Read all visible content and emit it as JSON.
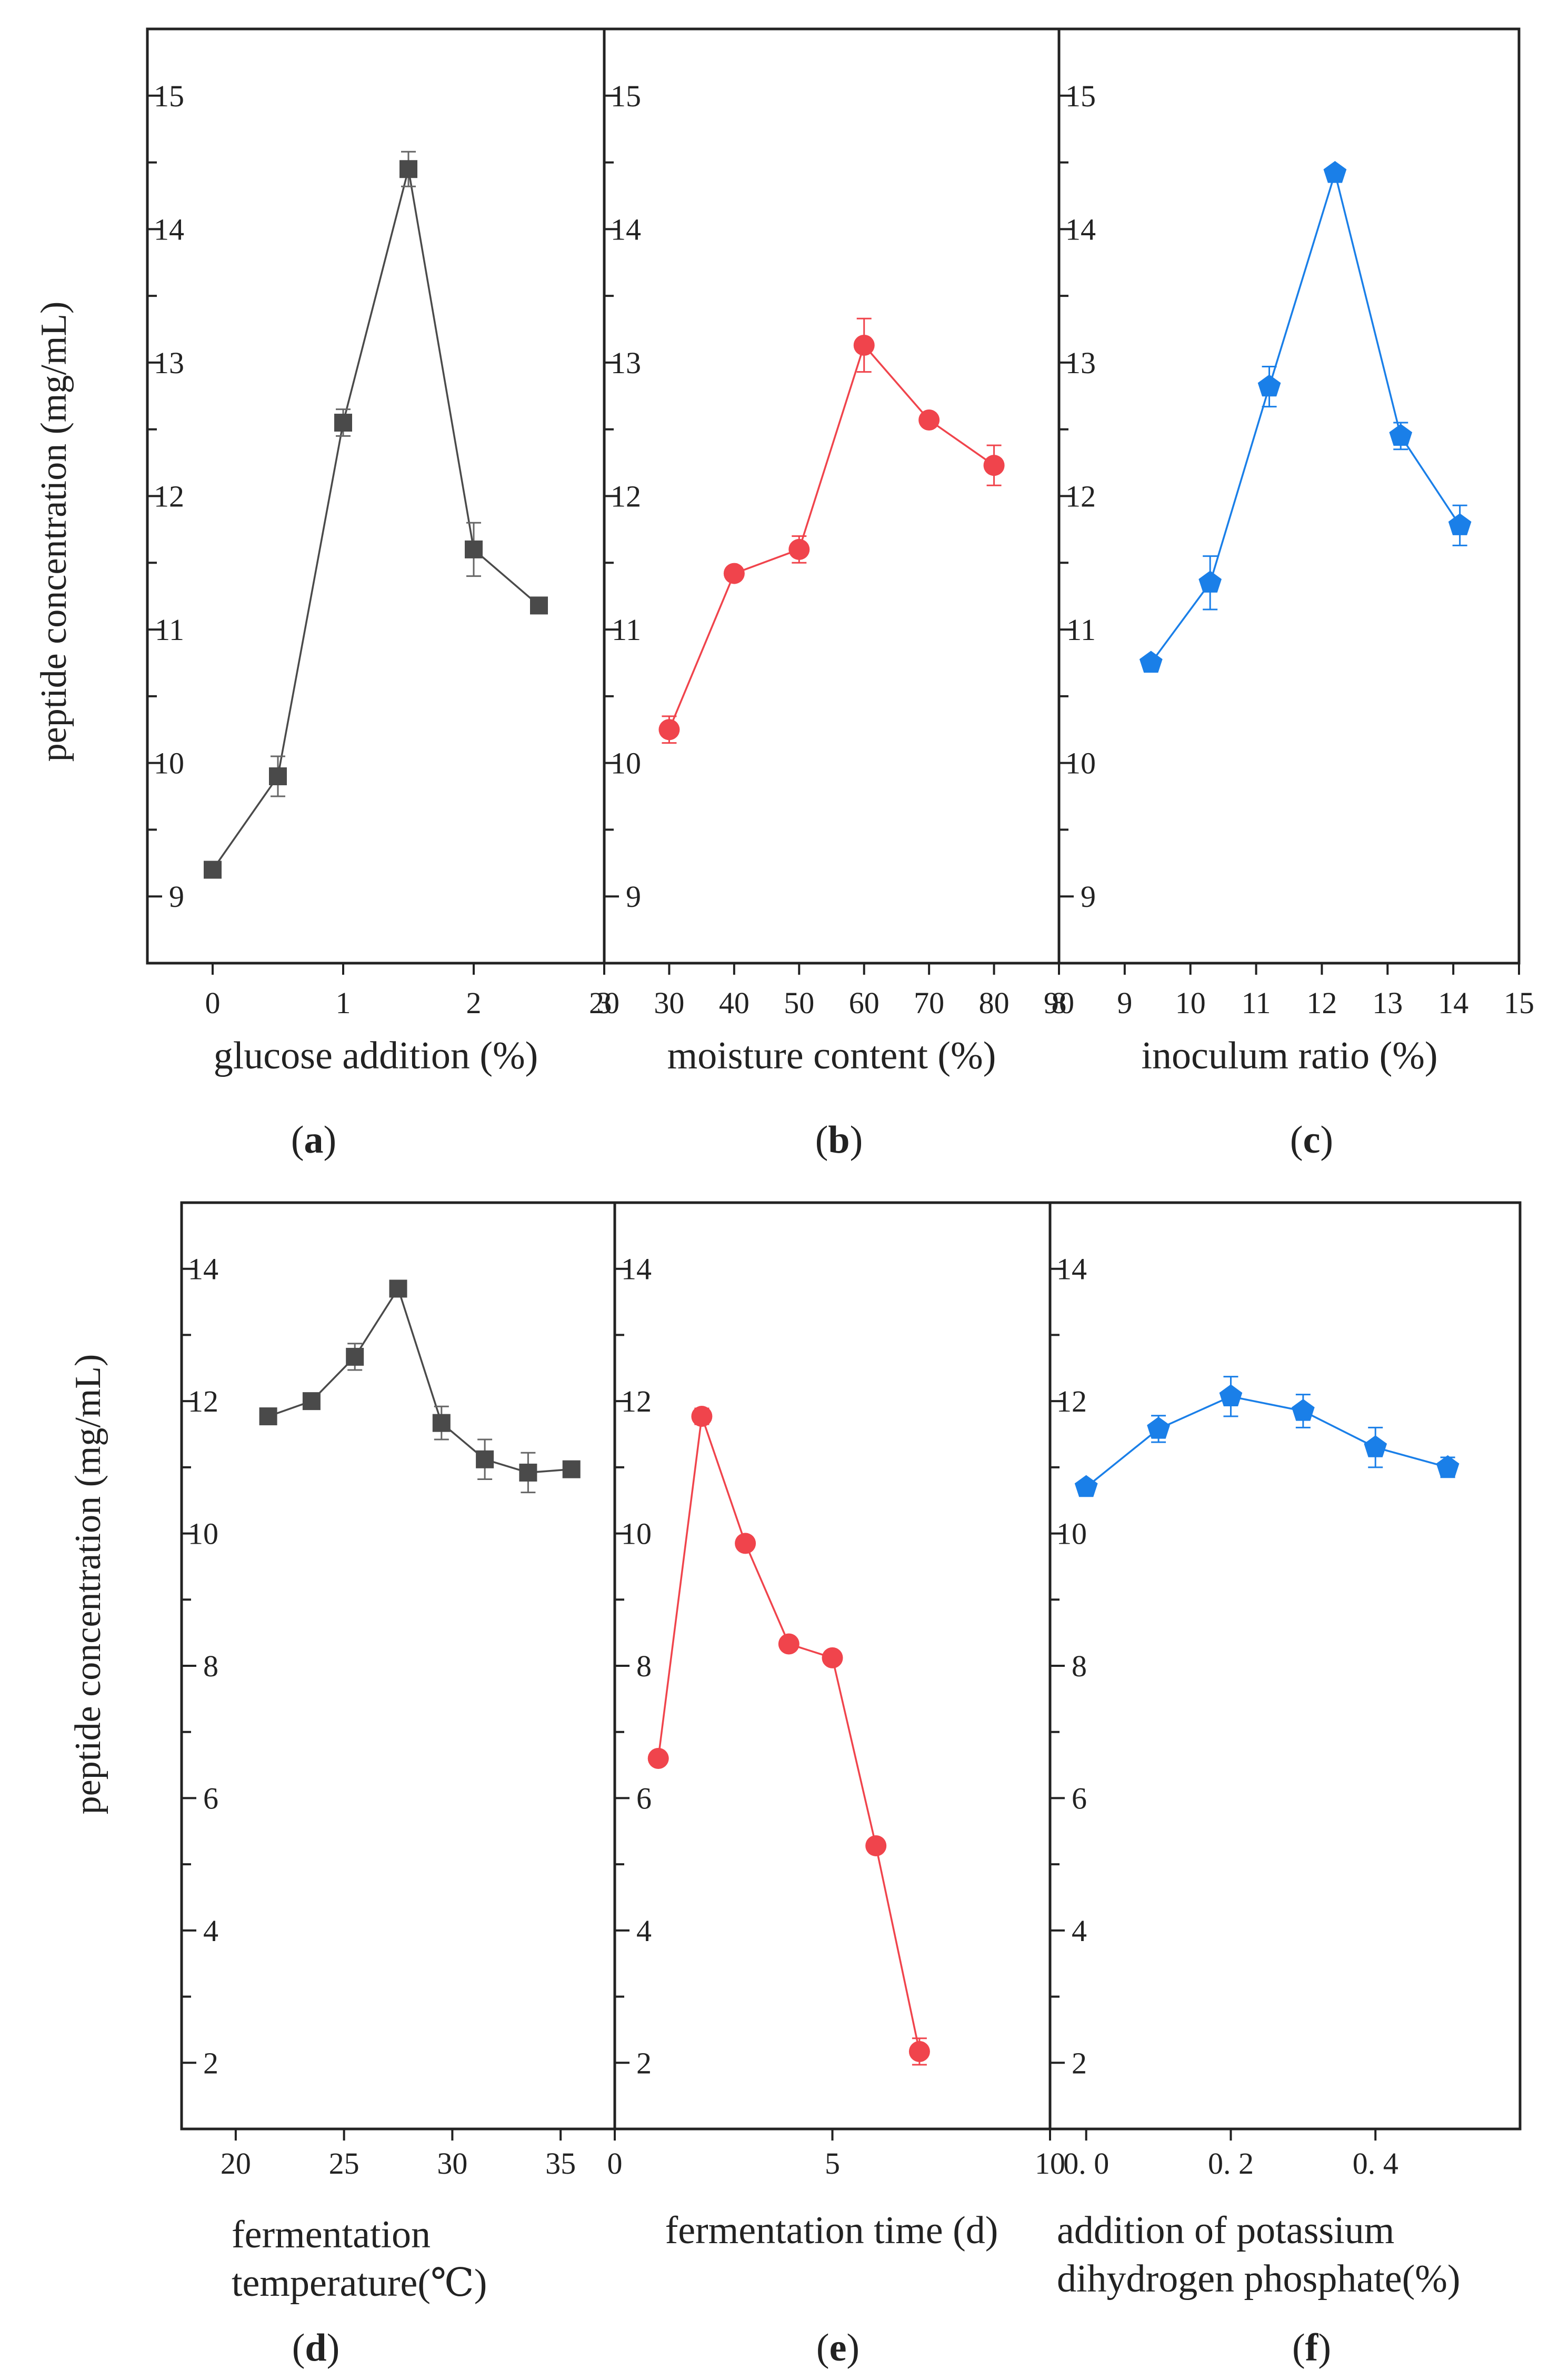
{
  "chart_data": [
    {
      "id": "a",
      "type": "line",
      "caption_letter": "a",
      "ylabel": "peptide concentration (mg/mL)",
      "xlabel_lines": [
        "glucose addition (%)"
      ],
      "xlim": [
        -0.5,
        3
      ],
      "ylim": [
        8.5,
        15.5
      ],
      "xticks": [
        0,
        1,
        2,
        3
      ],
      "yticks": [
        9,
        10,
        11,
        12,
        13,
        14,
        15
      ],
      "x_tick_labels": [
        "0",
        "1",
        "2",
        "3"
      ],
      "y_tick_labels": [
        "9",
        "10",
        "11",
        "12",
        "13",
        "14",
        "15"
      ],
      "color": "#4a4a4a",
      "marker": "square",
      "series": [
        {
          "name": "glucose addition",
          "x": [
            0,
            0.5,
            1.0,
            1.5,
            2.0,
            2.5
          ],
          "y": [
            9.2,
            9.9,
            12.55,
            14.45,
            11.6,
            11.18
          ],
          "err": [
            0.03,
            0.15,
            0.1,
            0.13,
            0.2,
            0.06
          ]
        }
      ]
    },
    {
      "id": "b",
      "type": "line",
      "caption_letter": "b",
      "ylabel": "",
      "xlabel_lines": [
        "moisture content (%)"
      ],
      "xlim": [
        20,
        90
      ],
      "ylim": [
        8.5,
        15.5
      ],
      "xticks": [
        20,
        30,
        40,
        50,
        60,
        70,
        80,
        90
      ],
      "yticks": [
        9,
        10,
        11,
        12,
        13,
        14,
        15
      ],
      "x_tick_labels": [
        "20",
        "30",
        "40",
        "50",
        "60",
        "70",
        "80",
        "90"
      ],
      "y_tick_labels": [
        "9",
        "10",
        "11",
        "12",
        "13",
        "14",
        "15"
      ],
      "color": "#f0444c",
      "marker": "circle",
      "series": [
        {
          "name": "moisture content",
          "x": [
            30,
            40,
            50,
            60,
            70,
            80
          ],
          "y": [
            10.25,
            11.42,
            11.6,
            13.13,
            12.57,
            12.23
          ],
          "err": [
            0.1,
            0.04,
            0.1,
            0.2,
            0.04,
            0.15
          ]
        }
      ]
    },
    {
      "id": "c",
      "type": "line",
      "caption_letter": "c",
      "ylabel": "",
      "xlabel_lines": [
        "inoculum ratio (%)"
      ],
      "xlim": [
        8,
        15
      ],
      "ylim": [
        8.5,
        15.5
      ],
      "xticks": [
        8,
        9,
        10,
        11,
        12,
        13,
        14,
        15
      ],
      "yticks": [
        9,
        10,
        11,
        12,
        13,
        14,
        15
      ],
      "x_tick_labels": [
        "8",
        "9",
        "10",
        "11",
        "12",
        "13",
        "14",
        "15"
      ],
      "y_tick_labels": [
        "9",
        "10",
        "11",
        "12",
        "13",
        "14",
        "15"
      ],
      "color": "#1a7fe8",
      "marker": "pentagon",
      "series": [
        {
          "name": "inoculum ratio",
          "x": [
            9.4,
            10.3,
            11.2,
            12.2,
            13.2,
            14.1
          ],
          "y": [
            10.75,
            11.35,
            12.82,
            14.42,
            12.45,
            11.78
          ],
          "err": [
            0.03,
            0.2,
            0.15,
            0.03,
            0.1,
            0.15
          ]
        }
      ]
    },
    {
      "id": "d",
      "type": "line",
      "caption_letter": "d",
      "ylabel": "peptide concentration (mg/mL)",
      "xlabel_lines": [
        "fermentation",
        "temperature(℃)"
      ],
      "xlim": [
        17.5,
        37.5
      ],
      "ylim": [
        1,
        15
      ],
      "xticks": [
        20,
        25,
        30,
        35
      ],
      "yticks": [
        2,
        4,
        6,
        8,
        10,
        12,
        14
      ],
      "x_tick_labels": [
        "20",
        "25",
        "30",
        "35"
      ],
      "y_tick_labels": [
        "2",
        "4",
        "6",
        "8",
        "10",
        "12",
        "14"
      ],
      "color": "#4a4a4a",
      "marker": "square",
      "series": [
        {
          "name": "fermentation temperature",
          "x": [
            21.5,
            23.5,
            25.5,
            27.5,
            29.5,
            31.5,
            33.5,
            35.5
          ],
          "y": [
            11.77,
            12.0,
            12.67,
            13.7,
            11.67,
            11.12,
            10.92,
            10.97
          ],
          "err": [
            0.05,
            0.05,
            0.2,
            0.08,
            0.25,
            0.3,
            0.3,
            0.08
          ]
        }
      ]
    },
    {
      "id": "e",
      "type": "line",
      "caption_letter": "e",
      "ylabel": "",
      "xlabel_lines": [
        "fermentation time (d)"
      ],
      "xlim": [
        0,
        10
      ],
      "ylim": [
        1,
        15
      ],
      "xticks": [
        0,
        5,
        10
      ],
      "yticks": [
        2,
        4,
        6,
        8,
        10,
        12,
        14
      ],
      "x_tick_labels": [
        "0",
        "5",
        "10"
      ],
      "y_tick_labels": [
        "2",
        "4",
        "6",
        "8",
        "10",
        "12",
        "14"
      ],
      "color": "#f0444c",
      "marker": "circle",
      "series": [
        {
          "name": "fermentation time",
          "x": [
            1,
            2,
            3,
            4,
            5,
            6,
            7
          ],
          "y": [
            6.6,
            11.77,
            9.85,
            8.33,
            8.12,
            5.28,
            2.17
          ],
          "err": [
            0.05,
            0.12,
            0.05,
            0.05,
            0.05,
            0.05,
            0.2
          ]
        }
      ]
    },
    {
      "id": "f",
      "type": "line",
      "caption_letter": "f",
      "ylabel": "",
      "xlabel_lines": [
        "addition of potassium",
        "dihydrogen phosphate(%)"
      ],
      "xlim": [
        -0.05,
        0.6
      ],
      "ylim": [
        1,
        15
      ],
      "xticks": [
        0.0,
        0.2,
        0.4
      ],
      "yticks": [
        2,
        4,
        6,
        8,
        10,
        12,
        14
      ],
      "x_tick_labels": [
        "0. 0",
        "0. 2",
        "0. 4"
      ],
      "y_tick_labels": [
        "2",
        "4",
        "6",
        "8",
        "10",
        "12",
        "14"
      ],
      "color": "#1a7fe8",
      "marker": "pentagon",
      "series": [
        {
          "name": "potassium dihydrogen phosphate",
          "x": [
            0.0,
            0.1,
            0.2,
            0.3,
            0.4,
            0.5
          ],
          "y": [
            10.7,
            11.58,
            12.07,
            11.85,
            11.3,
            11.0
          ],
          "err": [
            0.05,
            0.2,
            0.3,
            0.25,
            0.3,
            0.15
          ]
        }
      ]
    }
  ]
}
